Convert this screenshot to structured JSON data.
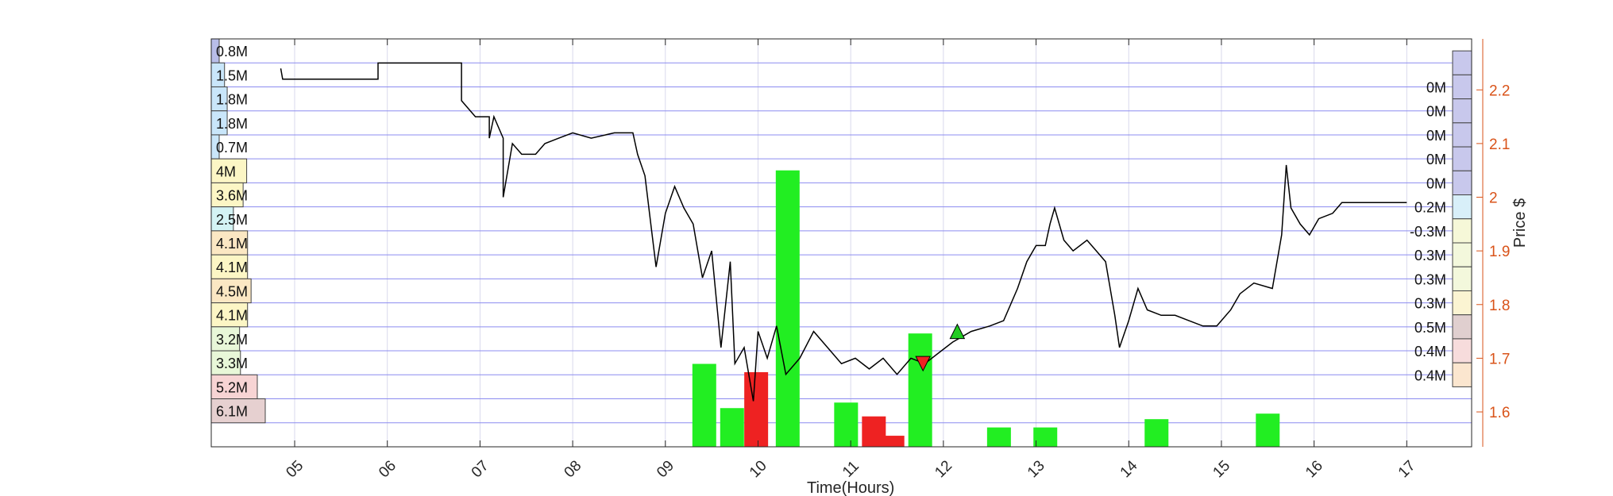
{
  "chart_data": {
    "type": "line",
    "xlabel": "Time(Hours)",
    "ylabel_right": "Price $",
    "x_ticks": [
      "05",
      "06",
      "07",
      "08",
      "09",
      "10",
      "11",
      "12",
      "13",
      "14",
      "15",
      "16",
      "17"
    ],
    "xlim": [
      4.1,
      17.7
    ],
    "ylim": [
      1.535,
      2.295
    ],
    "price_ticks": [
      1.6,
      1.7,
      1.8,
      1.9,
      2.0,
      2.1,
      2.2
    ],
    "price_tick_labels": [
      "1.6",
      "1.7",
      "1.8",
      "1.9",
      "2",
      "2.1",
      "2.2"
    ],
    "grid": true,
    "colors": {
      "price_line": "#000000",
      "volume_up": "#22ee22",
      "volume_down": "#ee2222",
      "grid_horizontal": "#8c8cf0",
      "grid_vertical": "#d9d9ec",
      "right_axis": "#d95319",
      "buy_marker": "#22cc22",
      "sell_marker": "#ee2222"
    },
    "price_series": [
      [
        4.85,
        2.24
      ],
      [
        4.87,
        2.22
      ],
      [
        5.9,
        2.22
      ],
      [
        5.9,
        2.25
      ],
      [
        6.8,
        2.25
      ],
      [
        6.8,
        2.18
      ],
      [
        6.95,
        2.15
      ],
      [
        7.1,
        2.15
      ],
      [
        7.1,
        2.11
      ],
      [
        7.15,
        2.15
      ],
      [
        7.25,
        2.11
      ],
      [
        7.25,
        2.0
      ],
      [
        7.35,
        2.1
      ],
      [
        7.45,
        2.08
      ],
      [
        7.6,
        2.08
      ],
      [
        7.7,
        2.1
      ],
      [
        7.85,
        2.11
      ],
      [
        8.0,
        2.12
      ],
      [
        8.2,
        2.11
      ],
      [
        8.45,
        2.12
      ],
      [
        8.65,
        2.12
      ],
      [
        8.7,
        2.08
      ],
      [
        8.78,
        2.04
      ],
      [
        8.85,
        1.94
      ],
      [
        8.9,
        1.87
      ],
      [
        9.0,
        1.97
      ],
      [
        9.1,
        2.02
      ],
      [
        9.2,
        1.98
      ],
      [
        9.3,
        1.95
      ],
      [
        9.4,
        1.85
      ],
      [
        9.5,
        1.9
      ],
      [
        9.6,
        1.72
      ],
      [
        9.7,
        1.88
      ],
      [
        9.75,
        1.69
      ],
      [
        9.85,
        1.72
      ],
      [
        9.95,
        1.62
      ],
      [
        10.0,
        1.75
      ],
      [
        10.1,
        1.7
      ],
      [
        10.2,
        1.76
      ],
      [
        10.3,
        1.67
      ],
      [
        10.45,
        1.7
      ],
      [
        10.6,
        1.75
      ],
      [
        10.75,
        1.72
      ],
      [
        10.9,
        1.69
      ],
      [
        11.05,
        1.7
      ],
      [
        11.2,
        1.68
      ],
      [
        11.35,
        1.7
      ],
      [
        11.5,
        1.67
      ],
      [
        11.65,
        1.7
      ],
      [
        11.8,
        1.69
      ],
      [
        11.95,
        1.71
      ],
      [
        12.1,
        1.73
      ],
      [
        12.3,
        1.75
      ],
      [
        12.5,
        1.76
      ],
      [
        12.65,
        1.77
      ],
      [
        12.8,
        1.83
      ],
      [
        12.9,
        1.88
      ],
      [
        13.0,
        1.91
      ],
      [
        13.1,
        1.91
      ],
      [
        13.15,
        1.95
      ],
      [
        13.2,
        1.98
      ],
      [
        13.3,
        1.92
      ],
      [
        13.4,
        1.9
      ],
      [
        13.55,
        1.92
      ],
      [
        13.65,
        1.9
      ],
      [
        13.75,
        1.88
      ],
      [
        13.85,
        1.78
      ],
      [
        13.9,
        1.72
      ],
      [
        14.0,
        1.77
      ],
      [
        14.1,
        1.83
      ],
      [
        14.2,
        1.79
      ],
      [
        14.35,
        1.78
      ],
      [
        14.5,
        1.78
      ],
      [
        14.65,
        1.77
      ],
      [
        14.8,
        1.76
      ],
      [
        14.95,
        1.76
      ],
      [
        15.1,
        1.79
      ],
      [
        15.2,
        1.82
      ],
      [
        15.35,
        1.84
      ],
      [
        15.55,
        1.83
      ],
      [
        15.65,
        1.93
      ],
      [
        15.7,
        2.06
      ],
      [
        15.75,
        1.98
      ],
      [
        15.85,
        1.95
      ],
      [
        15.95,
        1.93
      ],
      [
        16.05,
        1.96
      ],
      [
        16.2,
        1.97
      ],
      [
        16.3,
        1.99
      ],
      [
        17.0,
        1.99
      ]
    ],
    "volume_bars": [
      {
        "x": 9.42,
        "height": 0.3,
        "color": "up"
      },
      {
        "x": 9.72,
        "height": 0.14,
        "color": "up"
      },
      {
        "x": 9.98,
        "height": 0.27,
        "color": "down"
      },
      {
        "x": 10.32,
        "height": 1.0,
        "color": "up"
      },
      {
        "x": 10.95,
        "height": 0.16,
        "color": "up"
      },
      {
        "x": 11.25,
        "height": 0.11,
        "color": "down"
      },
      {
        "x": 11.45,
        "height": 0.04,
        "color": "down"
      },
      {
        "x": 11.75,
        "height": 0.41,
        "color": "up"
      },
      {
        "x": 12.6,
        "height": 0.07,
        "color": "up"
      },
      {
        "x": 13.1,
        "height": 0.07,
        "color": "up"
      },
      {
        "x": 14.3,
        "height": 0.1,
        "color": "up"
      },
      {
        "x": 15.5,
        "height": 0.12,
        "color": "up"
      }
    ],
    "markers": [
      {
        "type": "buy",
        "x": 12.15,
        "y": 1.75
      },
      {
        "type": "sell",
        "x": 11.78,
        "y": 1.69
      }
    ],
    "volume_profile_left": [
      {
        "label": "0.8M",
        "value": 0.8,
        "color": "#b8bde8"
      },
      {
        "label": "1.5M",
        "value": 1.5,
        "color": "#c9e6fa"
      },
      {
        "label": "1.8M",
        "value": 1.8,
        "color": "#c9e6fa"
      },
      {
        "label": "1.8M",
        "value": 1.8,
        "color": "#c9e6fa"
      },
      {
        "label": "0.7M",
        "value": 0.7,
        "color": "#c9e6fa"
      },
      {
        "label": "4M",
        "value": 4.0,
        "color": "#fcf6c5"
      },
      {
        "label": "3.6M",
        "value": 3.6,
        "color": "#fcf6c5"
      },
      {
        "label": "2.5M",
        "value": 2.5,
        "color": "#d4f3f4"
      },
      {
        "label": "4.1M",
        "value": 4.1,
        "color": "#fbe7c3"
      },
      {
        "label": "4.1M",
        "value": 4.1,
        "color": "#fcf6c5"
      },
      {
        "label": "4.5M",
        "value": 4.5,
        "color": "#fbe7c3"
      },
      {
        "label": "4.1M",
        "value": 4.1,
        "color": "#fcf6c5"
      },
      {
        "label": "3.2M",
        "value": 3.2,
        "color": "#e8f7d8"
      },
      {
        "label": "3.3M",
        "value": 3.3,
        "color": "#e8f7d8"
      },
      {
        "label": "5.2M",
        "value": 5.2,
        "color": "#f7d4d4"
      },
      {
        "label": "6.1M",
        "value": 6.1,
        "color": "#e6d0d0"
      }
    ],
    "volume_profile_right": [
      {
        "label": "",
        "value": 0.9,
        "color": "#c8c8ec"
      },
      {
        "label": "0M",
        "value": 0.9,
        "color": "#c8c8ec"
      },
      {
        "label": "0M",
        "value": 0.9,
        "color": "#c8c8ec"
      },
      {
        "label": "0M",
        "value": 0.9,
        "color": "#c8c8ec"
      },
      {
        "label": "0M",
        "value": 0.9,
        "color": "#c8c8ec"
      },
      {
        "label": "0M",
        "value": 0.9,
        "color": "#c8c8ec"
      },
      {
        "label": "0.2M",
        "value": 0.9,
        "color": "#d8eff9"
      },
      {
        "label": "-0.3M",
        "value": 0.9,
        "color": "#f6f8d8"
      },
      {
        "label": "0.3M",
        "value": 0.9,
        "color": "#f3f8dc"
      },
      {
        "label": "0.3M",
        "value": 0.9,
        "color": "#f3f8dc"
      },
      {
        "label": "0.3M",
        "value": 0.9,
        "color": "#fbf4d2"
      },
      {
        "label": "0.5M",
        "value": 0.9,
        "color": "#e0cfcf"
      },
      {
        "label": "0.4M",
        "value": 0.9,
        "color": "#f7dcdc"
      },
      {
        "label": "0.4M",
        "value": 0.9,
        "color": "#fbe6cf"
      }
    ]
  }
}
